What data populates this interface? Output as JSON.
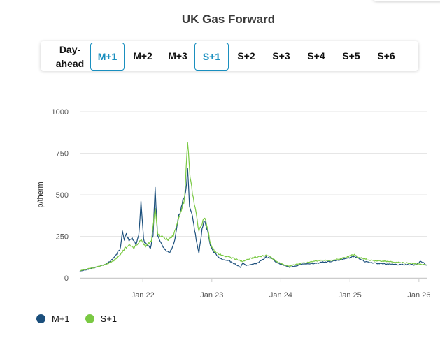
{
  "page": {
    "title": "UK Gas Forward"
  },
  "tabs": [
    {
      "label": "Day-\nahead",
      "active": false
    },
    {
      "label": "M+1",
      "active": true
    },
    {
      "label": "M+2",
      "active": false
    },
    {
      "label": "M+3",
      "active": false
    },
    {
      "label": "S+1",
      "active": true
    },
    {
      "label": "S+2",
      "active": false
    },
    {
      "label": "S+3",
      "active": false
    },
    {
      "label": "S+4",
      "active": false
    },
    {
      "label": "S+5",
      "active": false
    },
    {
      "label": "S+6",
      "active": false
    }
  ],
  "colors": {
    "m1": "#1b4f7c",
    "s1": "#7ac943",
    "active_tab": "#1a8fbf",
    "grid": "#e6e6e6",
    "axis_text": "#555555"
  },
  "chart_data": {
    "type": "line",
    "title": "UK Gas Forward",
    "ylabel": "p/therm",
    "xlabel": "",
    "ylim": [
      0,
      1000
    ],
    "yticks": [
      0,
      250,
      500,
      750,
      1000
    ],
    "xlim": [
      "2021-02-01",
      "2026-02-15"
    ],
    "xticks": [
      {
        "label": "Jan 22",
        "date": "2022-01-01"
      },
      {
        "label": "Jan 23",
        "date": "2023-01-01"
      },
      {
        "label": "Jan 24",
        "date": "2024-01-01"
      },
      {
        "label": "Jan 25",
        "date": "2025-01-01"
      },
      {
        "label": "Jan 26",
        "date": "2026-01-01"
      }
    ],
    "grid": true,
    "legend": "bottom-left",
    "series": [
      {
        "name": "M+1",
        "color": "#1b4f7c",
        "points": [
          [
            "2021-02-01",
            40
          ],
          [
            "2021-03-01",
            48
          ],
          [
            "2021-04-01",
            55
          ],
          [
            "2021-05-01",
            65
          ],
          [
            "2021-06-01",
            75
          ],
          [
            "2021-07-01",
            90
          ],
          [
            "2021-08-01",
            120
          ],
          [
            "2021-08-20",
            150
          ],
          [
            "2021-09-05",
            180
          ],
          [
            "2021-09-15",
            280
          ],
          [
            "2021-09-25",
            230
          ],
          [
            "2021-10-06",
            260
          ],
          [
            "2021-10-20",
            220
          ],
          [
            "2021-11-05",
            240
          ],
          [
            "2021-11-25",
            200
          ],
          [
            "2021-12-10",
            250
          ],
          [
            "2021-12-22",
            450
          ],
          [
            "2022-01-05",
            230
          ],
          [
            "2022-01-20",
            200
          ],
          [
            "2022-02-10",
            180
          ],
          [
            "2022-02-24",
            260
          ],
          [
            "2022-03-07",
            540
          ],
          [
            "2022-03-20",
            250
          ],
          [
            "2022-04-10",
            200
          ],
          [
            "2022-05-01",
            170
          ],
          [
            "2022-05-20",
            150
          ],
          [
            "2022-06-10",
            190
          ],
          [
            "2022-06-20",
            230
          ],
          [
            "2022-07-01",
            320
          ],
          [
            "2022-07-15",
            390
          ],
          [
            "2022-08-01",
            470
          ],
          [
            "2022-08-15",
            520
          ],
          [
            "2022-08-26",
            640
          ],
          [
            "2022-09-05",
            440
          ],
          [
            "2022-09-20",
            370
          ],
          [
            "2022-10-10",
            230
          ],
          [
            "2022-10-25",
            150
          ],
          [
            "2022-11-10",
            290
          ],
          [
            "2022-11-25",
            350
          ],
          [
            "2022-12-10",
            280
          ],
          [
            "2022-12-25",
            190
          ],
          [
            "2023-01-15",
            150
          ],
          [
            "2023-02-01",
            130
          ],
          [
            "2023-03-01",
            110
          ],
          [
            "2023-04-01",
            105
          ],
          [
            "2023-05-01",
            85
          ],
          [
            "2023-06-01",
            65
          ],
          [
            "2023-06-15",
            90
          ],
          [
            "2023-07-01",
            75
          ],
          [
            "2023-08-01",
            80
          ],
          [
            "2023-09-01",
            90
          ],
          [
            "2023-10-15",
            125
          ],
          [
            "2023-11-15",
            115
          ],
          [
            "2023-12-15",
            90
          ],
          [
            "2024-01-15",
            75
          ],
          [
            "2024-02-15",
            65
          ],
          [
            "2024-03-15",
            70
          ],
          [
            "2024-05-01",
            85
          ],
          [
            "2024-06-15",
            85
          ],
          [
            "2024-08-15",
            95
          ],
          [
            "2024-10-01",
            100
          ],
          [
            "2024-11-15",
            110
          ],
          [
            "2024-12-15",
            115
          ],
          [
            "2025-01-20",
            130
          ],
          [
            "2025-02-10",
            125
          ],
          [
            "2025-03-15",
            100
          ],
          [
            "2025-05-01",
            90
          ],
          [
            "2025-07-01",
            85
          ],
          [
            "2025-09-01",
            80
          ],
          [
            "2025-11-01",
            80
          ],
          [
            "2025-12-15",
            78
          ],
          [
            "2026-01-10",
            100
          ],
          [
            "2026-01-25",
            90
          ],
          [
            "2026-02-10",
            75
          ]
        ]
      },
      {
        "name": "S+1",
        "color": "#7ac943",
        "points": [
          [
            "2021-02-01",
            45
          ],
          [
            "2021-03-01",
            50
          ],
          [
            "2021-04-01",
            58
          ],
          [
            "2021-05-01",
            65
          ],
          [
            "2021-06-01",
            75
          ],
          [
            "2021-07-01",
            85
          ],
          [
            "2021-08-01",
            105
          ],
          [
            "2021-09-01",
            140
          ],
          [
            "2021-10-01",
            180
          ],
          [
            "2021-10-20",
            195
          ],
          [
            "2021-11-15",
            180
          ],
          [
            "2021-12-20",
            230
          ],
          [
            "2022-01-15",
            190
          ],
          [
            "2022-02-15",
            220
          ],
          [
            "2022-03-08",
            420
          ],
          [
            "2022-03-20",
            260
          ],
          [
            "2022-04-15",
            250
          ],
          [
            "2022-05-15",
            230
          ],
          [
            "2022-06-15",
            260
          ],
          [
            "2022-07-15",
            370
          ],
          [
            "2022-08-10",
            480
          ],
          [
            "2022-08-26",
            825
          ],
          [
            "2022-09-08",
            600
          ],
          [
            "2022-09-25",
            470
          ],
          [
            "2022-10-10",
            380
          ],
          [
            "2022-10-25",
            280
          ],
          [
            "2022-11-10",
            330
          ],
          [
            "2022-11-25",
            370
          ],
          [
            "2022-12-10",
            300
          ],
          [
            "2022-12-25",
            200
          ],
          [
            "2023-01-15",
            160
          ],
          [
            "2023-02-15",
            140
          ],
          [
            "2023-03-15",
            130
          ],
          [
            "2023-05-01",
            115
          ],
          [
            "2023-06-15",
            100
          ],
          [
            "2023-08-01",
            120
          ],
          [
            "2023-09-15",
            130
          ],
          [
            "2023-10-15",
            135
          ],
          [
            "2023-11-15",
            120
          ],
          [
            "2023-12-15",
            95
          ],
          [
            "2024-01-15",
            80
          ],
          [
            "2024-02-15",
            70
          ],
          [
            "2024-04-01",
            85
          ],
          [
            "2024-06-01",
            95
          ],
          [
            "2024-08-01",
            105
          ],
          [
            "2024-10-01",
            105
          ],
          [
            "2024-12-01",
            120
          ],
          [
            "2025-01-20",
            140
          ],
          [
            "2025-02-15",
            125
          ],
          [
            "2025-03-15",
            115
          ],
          [
            "2025-05-01",
            105
          ],
          [
            "2025-07-01",
            100
          ],
          [
            "2025-09-01",
            95
          ],
          [
            "2025-11-01",
            90
          ],
          [
            "2025-12-15",
            85
          ],
          [
            "2026-01-15",
            82
          ],
          [
            "2026-02-10",
            78
          ]
        ]
      }
    ]
  }
}
